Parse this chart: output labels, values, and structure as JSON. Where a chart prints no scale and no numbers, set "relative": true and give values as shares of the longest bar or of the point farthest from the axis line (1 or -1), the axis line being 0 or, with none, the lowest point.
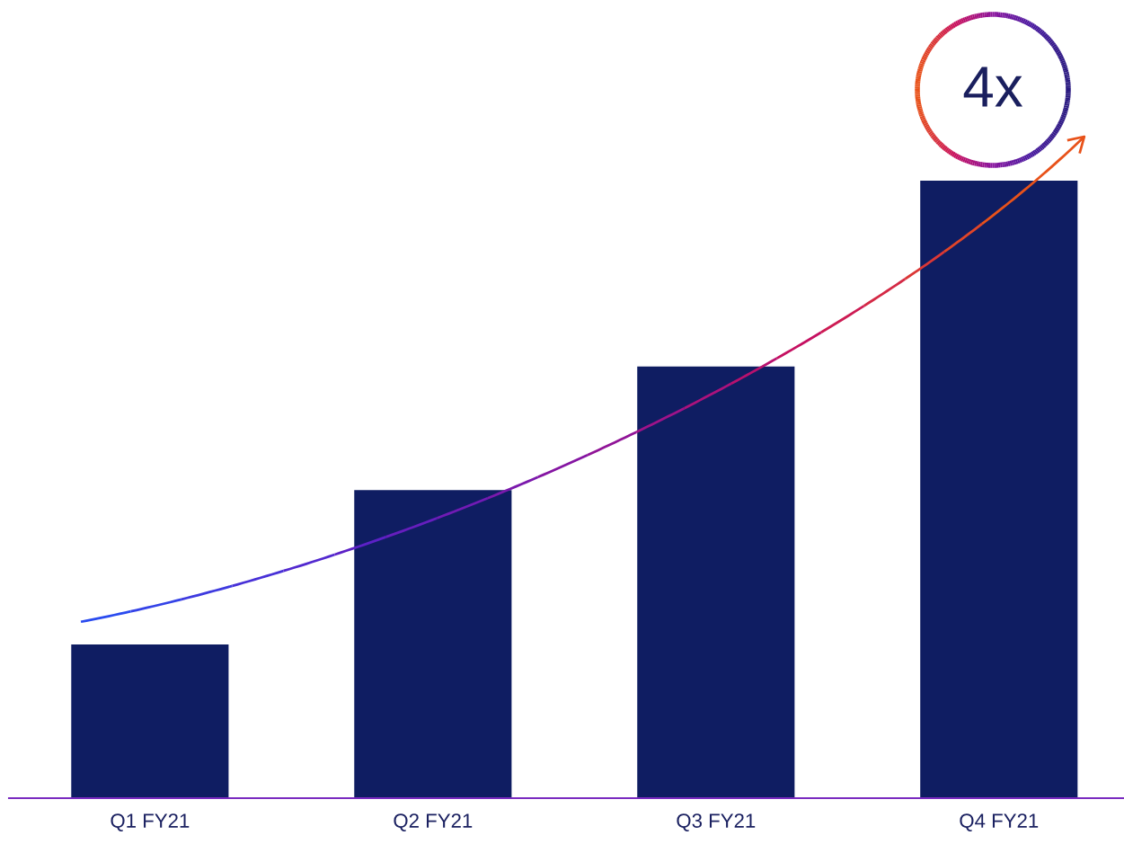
{
  "chart_data": {
    "type": "bar",
    "relative": true,
    "categories": [
      "Q1 FY21",
      "Q2 FY21",
      "Q3 FY21",
      "Q4 FY21"
    ],
    "values": [
      0.249,
      0.499,
      0.699,
      1
    ],
    "color": "#0f1d62",
    "annotations": [
      "4x"
    ],
    "grid": false,
    "legend": false
  }
}
